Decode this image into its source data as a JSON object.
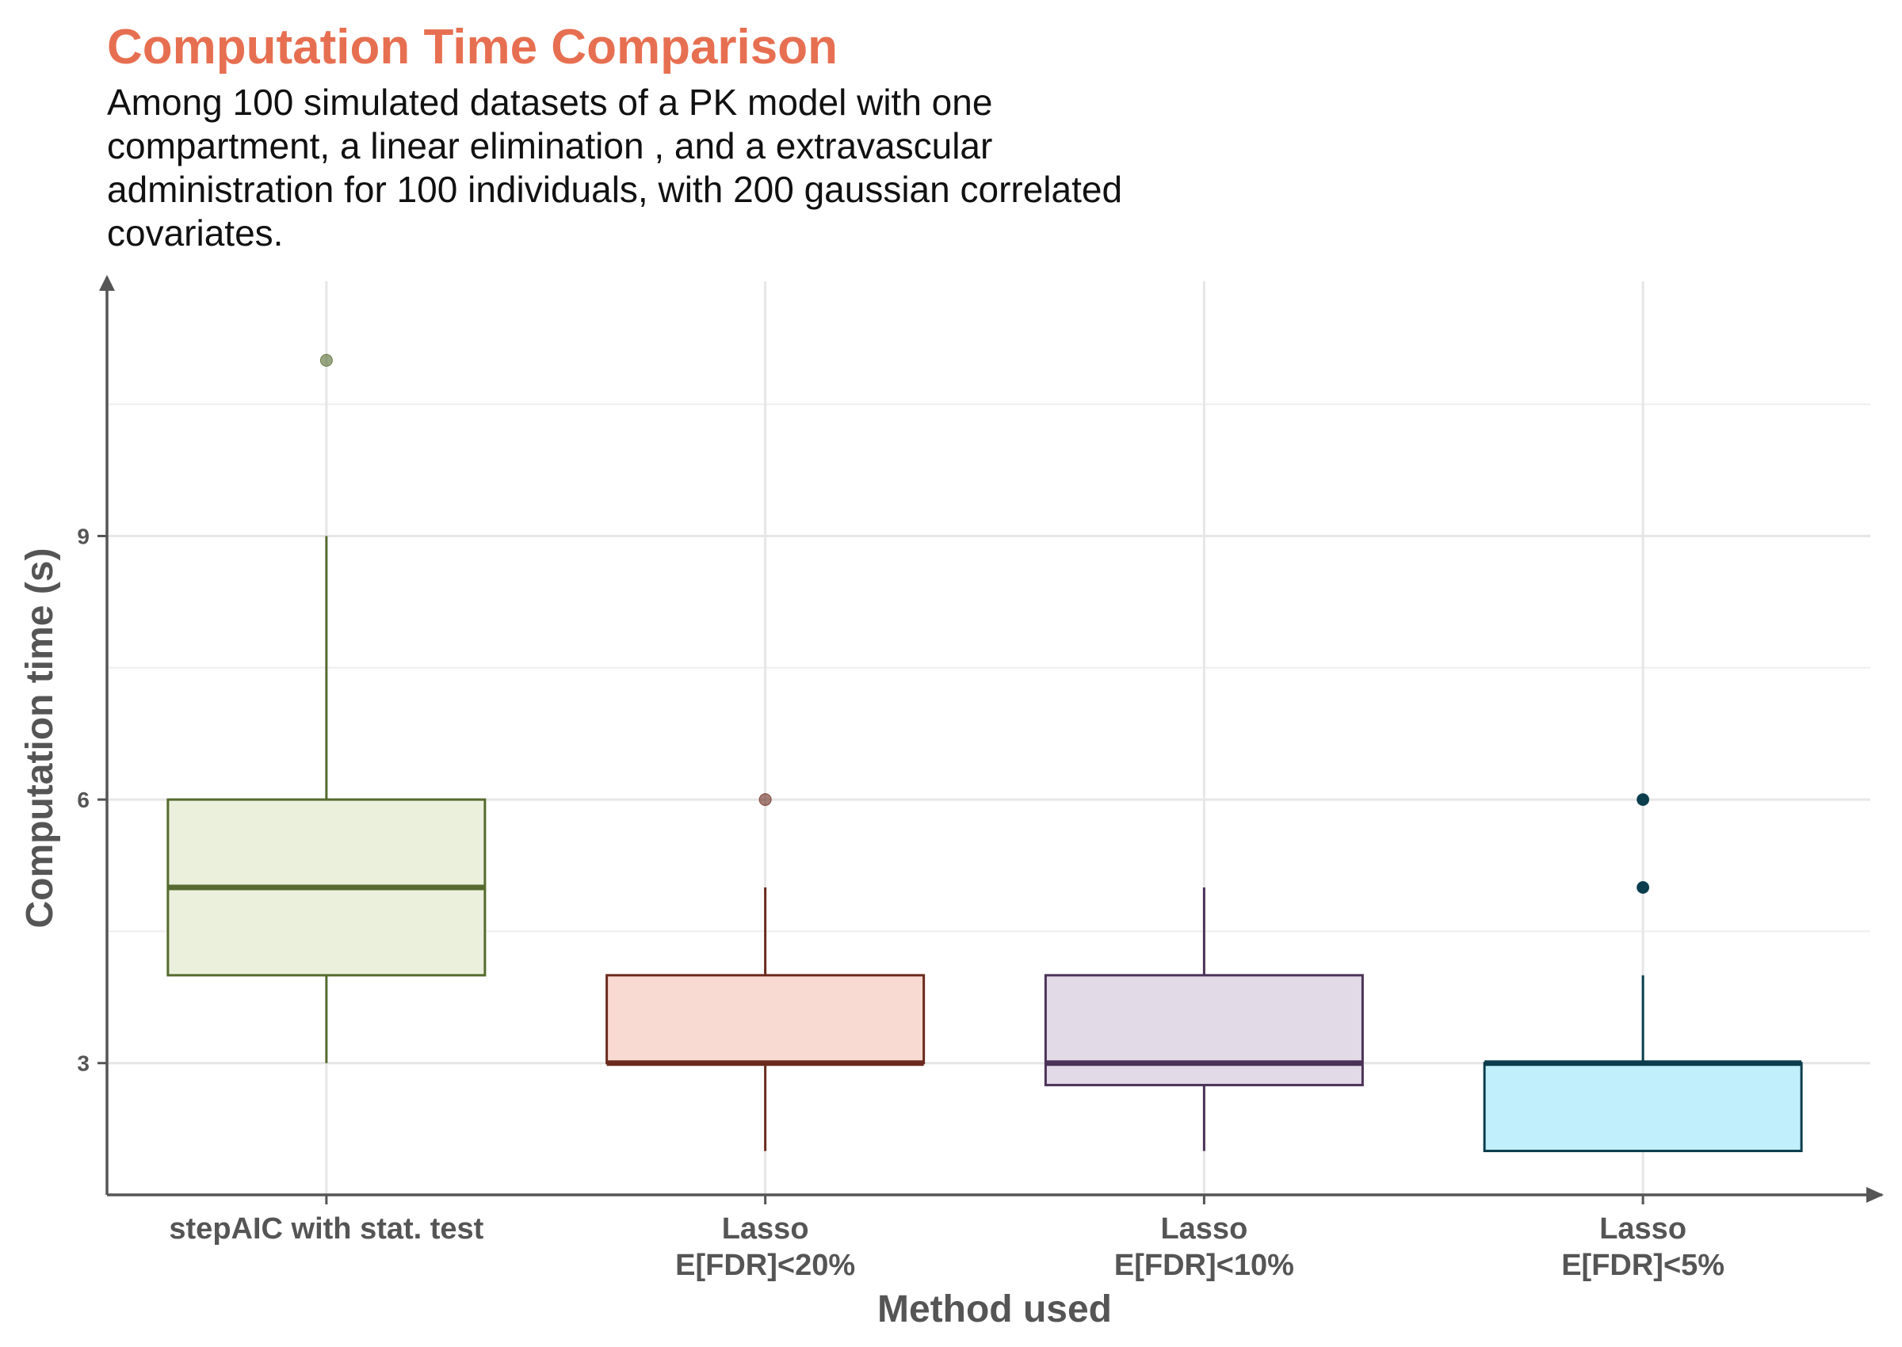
{
  "chart_data": {
    "type": "box",
    "title": "Computation Time Comparison",
    "subtitle": "Among 100 simulated datasets of a PK model with one compartment, a linear elimination , and a extravascular administration for 100 individuals, with 200 gaussian correlated covariates.",
    "xlabel": "Method used",
    "ylabel": "Computation time (s)",
    "ylim": [
      1.5,
      11.9
    ],
    "yticks": [
      3,
      6,
      9
    ],
    "grid": true,
    "categories": [
      {
        "label": [
          "stepAIC with stat. test"
        ],
        "color": "#556B2F",
        "fill": "#EBF0DC"
      },
      {
        "label": [
          "Lasso",
          "E[FDR]<20%"
        ],
        "color": "#6B2A1E",
        "fill": "#F9DAD2"
      },
      {
        "label": [
          "Lasso",
          "E[FDR]<10%"
        ],
        "color": "#4B3358",
        "fill": "#E3DAE7"
      },
      {
        "label": [
          "Lasso",
          "E[FDR]<5%"
        ],
        "color": "#0B3D4C",
        "fill": "#C2EFFC"
      }
    ],
    "boxes": [
      {
        "whisker_low": 3,
        "q1": 4,
        "median": 5,
        "q3": 6,
        "whisker_high": 9,
        "outliers": [
          11
        ]
      },
      {
        "whisker_low": 2,
        "q1": 3,
        "median": 3,
        "q3": 4,
        "whisker_high": 5,
        "outliers": [
          6
        ]
      },
      {
        "whisker_low": 2,
        "q1": 2.75,
        "median": 3,
        "q3": 4,
        "whisker_high": 5,
        "outliers": []
      },
      {
        "whisker_low": 2,
        "q1": 2,
        "median": 3,
        "q3": 3,
        "whisker_high": 4,
        "outliers": [
          5,
          6
        ]
      }
    ]
  }
}
